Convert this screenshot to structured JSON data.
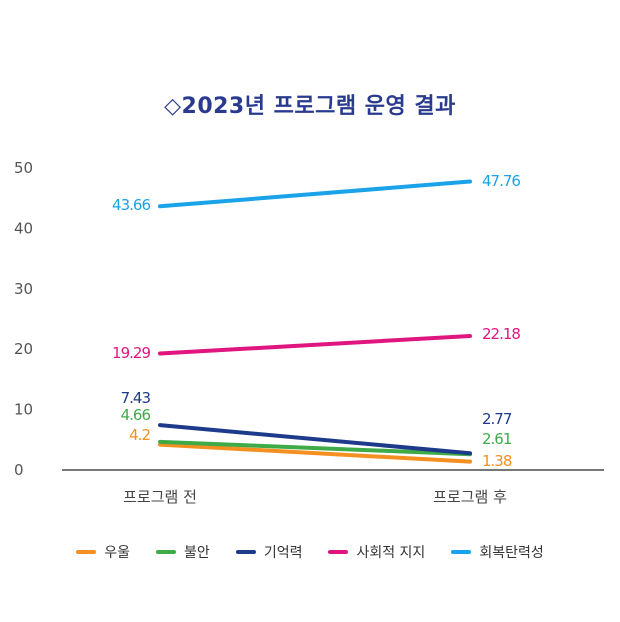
{
  "title": "◇2023년 프로그램 운영 결과",
  "chart_data": {
    "type": "line",
    "title": "◇2023년 프로그램 운영 결과",
    "categories": [
      "프로그램 전",
      "프로그램 후"
    ],
    "ylim": [
      0,
      50
    ],
    "yticks": [
      0,
      10,
      20,
      30,
      40,
      50
    ],
    "grid": false,
    "legend_position": "bottom",
    "series": [
      {
        "name": "우울",
        "color": "#f39021",
        "values": [
          4.2,
          1.38
        ],
        "labels": [
          "4.2",
          "1.38"
        ]
      },
      {
        "name": "불안",
        "color": "#3eab48",
        "values": [
          4.66,
          2.61
        ],
        "labels": [
          "4.66",
          "2.61"
        ]
      },
      {
        "name": "기억력",
        "color": "#1e3a8a",
        "values": [
          7.43,
          2.77
        ],
        "labels": [
          "7.43",
          "2.77"
        ]
      },
      {
        "name": "사회적 지지",
        "color": "#e0157f",
        "values": [
          19.29,
          22.18
        ],
        "labels": [
          "19.29",
          "22.18"
        ]
      },
      {
        "name": "회복탄력성",
        "color": "#1aa3e8",
        "values": [
          43.66,
          47.76
        ],
        "labels": [
          "43.66",
          "47.76"
        ]
      }
    ]
  }
}
